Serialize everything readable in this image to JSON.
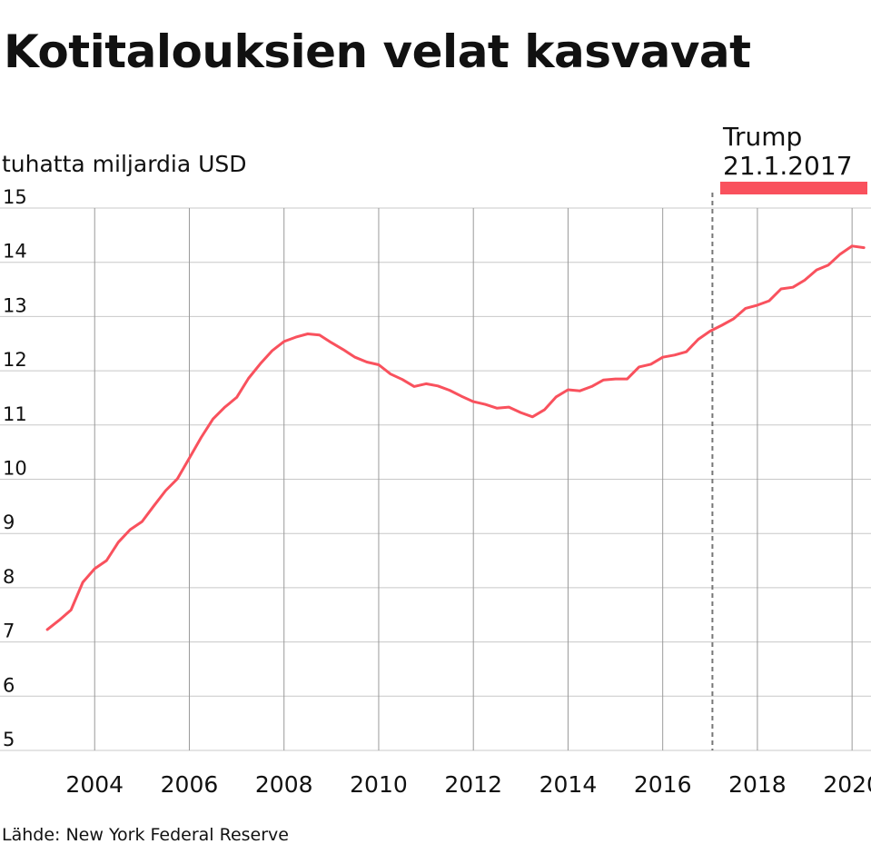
{
  "chart_data": {
    "type": "line",
    "title": "Kotitalouksien velat kasvavat",
    "ylabel": "tuhatta miljardia USD",
    "source": "Lähde: New York Federal Reserve",
    "ylim": [
      5,
      15
    ],
    "xlim": [
      2002.0,
      2020.4
    ],
    "y_ticks": [
      "5",
      "6",
      "7",
      "8",
      "9",
      "10",
      "11",
      "12",
      "13",
      "14",
      "15"
    ],
    "x_ticks": [
      "2004",
      "2006",
      "2008",
      "2010",
      "2012",
      "2014",
      "2016",
      "2018",
      "2020"
    ],
    "grid": true,
    "color": "#f9515d",
    "annotation": {
      "line1": "Trump",
      "line2": "21.1.2017",
      "x": 2017.05,
      "color": "#f9515d"
    },
    "series": [
      {
        "x": [
          2003.0,
          2003.25,
          2003.5,
          2003.75,
          2004.0,
          2004.25,
          2004.5,
          2004.75,
          2005.0,
          2005.25,
          2005.5,
          2005.75,
          2006.0,
          2006.25,
          2006.5,
          2006.75,
          2007.0,
          2007.25,
          2007.5,
          2007.75,
          2008.0,
          2008.25,
          2008.5,
          2008.75,
          2009.0,
          2009.25,
          2009.5,
          2009.75,
          2010.0,
          2010.25,
          2010.5,
          2010.75,
          2011.0,
          2011.25,
          2011.5,
          2011.75,
          2012.0,
          2012.25,
          2012.5,
          2012.75,
          2013.0,
          2013.25,
          2013.5,
          2013.75,
          2014.0,
          2014.25,
          2014.5,
          2014.75,
          2015.0,
          2015.25,
          2015.5,
          2015.75,
          2016.0,
          2016.25,
          2016.5,
          2016.75,
          2017.0,
          2017.25,
          2017.5,
          2017.75,
          2018.0,
          2018.25,
          2018.5,
          2018.75,
          2019.0,
          2019.25,
          2019.5,
          2019.75,
          2020.0,
          2020.25
        ],
        "values": [
          7.23,
          7.4,
          7.59,
          8.1,
          8.35,
          8.5,
          8.84,
          9.07,
          9.22,
          9.51,
          9.79,
          10.01,
          10.39,
          10.77,
          11.11,
          11.33,
          11.51,
          11.86,
          12.13,
          12.37,
          12.54,
          12.62,
          12.68,
          12.66,
          12.52,
          12.39,
          12.25,
          12.16,
          12.11,
          11.94,
          11.84,
          11.71,
          11.76,
          11.72,
          11.64,
          11.53,
          11.43,
          11.38,
          11.31,
          11.33,
          11.23,
          11.15,
          11.28,
          11.52,
          11.65,
          11.63,
          11.71,
          11.83,
          11.85,
          11.85,
          12.07,
          12.12,
          12.25,
          12.29,
          12.35,
          12.58,
          12.73,
          12.84,
          12.96,
          13.15,
          13.21,
          13.29,
          13.51,
          13.54,
          13.67,
          13.86,
          13.95,
          14.15,
          14.3,
          14.27
        ]
      }
    ]
  }
}
